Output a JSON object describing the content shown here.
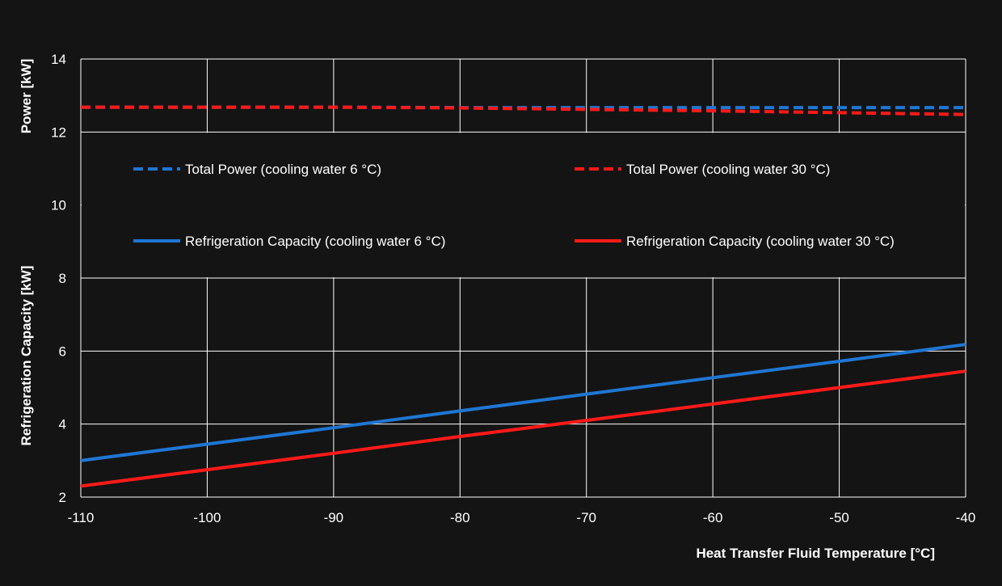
{
  "chart_data": {
    "type": "line",
    "xlabel": "Heat Transfer Fluid Temperature [°C]",
    "ylabel_upper": "Power [kW]",
    "ylabel_lower": "Refrigeration Capacity  [kW]",
    "xlim": [
      -110,
      -40
    ],
    "ylim": [
      2,
      14
    ],
    "x_ticks": [
      -110,
      -100,
      -90,
      -80,
      -70,
      -60,
      -50,
      -40
    ],
    "y_ticks": [
      2,
      4,
      6,
      8,
      10,
      12,
      14
    ],
    "grid": true,
    "background": "#141414",
    "series": [
      {
        "name": "Total Power (cooling water 6 °C)",
        "color": "#1f77d4",
        "dash": true,
        "x": [
          -110,
          -100,
          -90,
          -80,
          -70,
          -60,
          -50,
          -40
        ],
        "y": [
          12.68,
          12.68,
          12.68,
          12.67,
          12.67,
          12.67,
          12.67,
          12.67
        ]
      },
      {
        "name": "Total Power (cooling water 30 °C)",
        "color": "#ff1a1a",
        "dash": true,
        "x": [
          -110,
          -100,
          -90,
          -80,
          -70,
          -60,
          -50,
          -40
        ],
        "y": [
          12.68,
          12.68,
          12.68,
          12.66,
          12.62,
          12.58,
          12.53,
          12.48
        ]
      },
      {
        "name": "Refrigeration Capacity (cooling water 6 °C)",
        "color": "#1f77d4",
        "dash": false,
        "x": [
          -110,
          -100,
          -90,
          -80,
          -70,
          -60,
          -50,
          -40
        ],
        "y": [
          3.0,
          3.45,
          3.9,
          4.36,
          4.82,
          5.27,
          5.72,
          6.18
        ]
      },
      {
        "name": "Refrigeration Capacity (cooling water 30 °C)",
        "color": "#ff1a1a",
        "dash": false,
        "x": [
          -110,
          -100,
          -90,
          -80,
          -70,
          -60,
          -50,
          -40
        ],
        "y": [
          2.3,
          2.75,
          3.2,
          3.66,
          4.1,
          4.55,
          5.0,
          5.45
        ]
      }
    ]
  }
}
